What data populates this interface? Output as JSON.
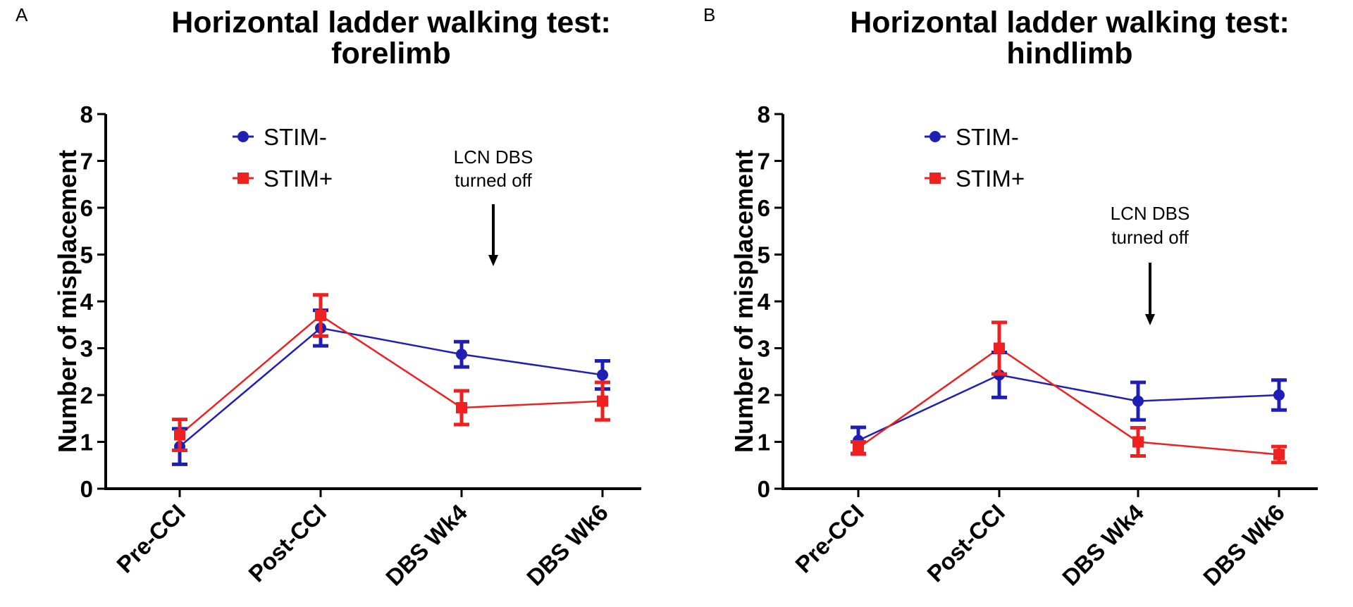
{
  "chart_data": [
    {
      "type": "line",
      "panel": "A",
      "title": [
        "Horizontal ladder walking test:",
        "forelimb"
      ],
      "ylabel": "Number of misplacement",
      "xlabel": "",
      "ylim": [
        0,
        8
      ],
      "yticks": [
        "0",
        "1",
        "2",
        "3",
        "4",
        "5",
        "6",
        "7",
        "8"
      ],
      "categories": [
        "Pre-CCI",
        "Post-CCI",
        "DBS Wk4",
        "DBS Wk6"
      ],
      "legend_position": "top-left",
      "series": [
        {
          "name": "STIM-",
          "color": "#1f1fb4",
          "marker": "circle",
          "values": [
            0.9,
            3.43,
            2.87,
            2.43
          ],
          "errors": [
            0.38,
            0.38,
            0.27,
            0.3
          ]
        },
        {
          "name": "STIM+",
          "color": "#ee2020",
          "marker": "square",
          "values": [
            1.15,
            3.7,
            1.73,
            1.87
          ],
          "errors": [
            0.33,
            0.44,
            0.36,
            0.4
          ]
        }
      ],
      "annotation": {
        "lines": [
          "LCN DBS",
          "turned off"
        ],
        "category_between": [
          2,
          3
        ]
      }
    },
    {
      "type": "line",
      "panel": "B",
      "title": [
        "Horizontal ladder walking test:",
        "hindlimb"
      ],
      "ylabel": "Number of misplacement",
      "xlabel": "",
      "ylim": [
        0,
        8
      ],
      "yticks": [
        "0",
        "1",
        "2",
        "3",
        "4",
        "5",
        "6",
        "7",
        "8"
      ],
      "categories": [
        "Pre-CCI",
        "Post-CCI",
        "DBS Wk4",
        "DBS Wk6"
      ],
      "legend_position": "top-left",
      "series": [
        {
          "name": "STIM-",
          "color": "#1f1fb4",
          "marker": "circle",
          "values": [
            1.03,
            2.43,
            1.87,
            2.0
          ],
          "errors": [
            0.28,
            0.48,
            0.4,
            0.32
          ]
        },
        {
          "name": "STIM+",
          "color": "#ee2020",
          "marker": "square",
          "values": [
            0.87,
            3.0,
            1.0,
            0.73
          ],
          "errors": [
            0.13,
            0.55,
            0.3,
            0.17
          ]
        }
      ],
      "annotation": {
        "lines": [
          "LCN DBS",
          "turned off"
        ],
        "category_between": [
          2,
          3
        ]
      }
    }
  ]
}
